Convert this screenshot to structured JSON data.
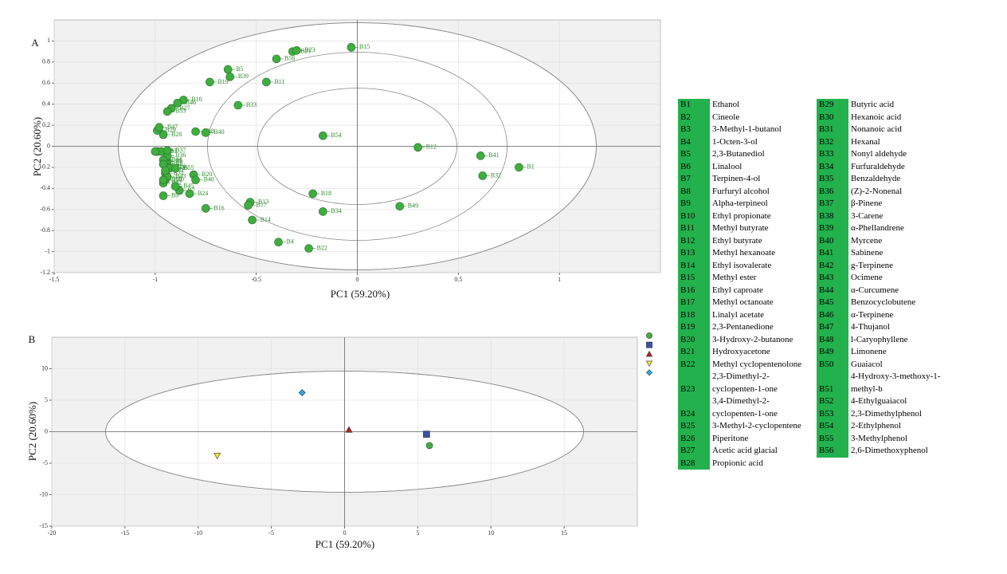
{
  "chart_data": [
    {
      "type": "scatter",
      "panel": "A",
      "xlabel": "PC1 (59.20%)",
      "ylabel": "PC2 (20.60%)",
      "xlim": [
        -1.5,
        1.5
      ],
      "ylim": [
        -1.2,
        1.2
      ],
      "xticks": [
        -1.5,
        -1,
        -0.5,
        0,
        0.5,
        1
      ],
      "yticks": [
        -1.2,
        -1,
        -0.8,
        -0.6,
        -0.4,
        -0.2,
        0,
        0.2,
        0.4,
        0.6,
        0.8,
        1
      ],
      "grid": true,
      "color": "#3fae3f",
      "labels": [
        "B1",
        "B2",
        "B3",
        "B4",
        "B5",
        "B6",
        "B7",
        "B8",
        "B9",
        "B10",
        "B11",
        "B12",
        "B13",
        "B14",
        "B15",
        "B16",
        "B17",
        "B18",
        "B19",
        "B20",
        "B21",
        "B22",
        "B23",
        "B24",
        "B25",
        "B26",
        "B27",
        "B28",
        "B29",
        "B30",
        "B31",
        "B32",
        "B33",
        "B34",
        "B35",
        "B36",
        "B37",
        "B38",
        "B39",
        "B40",
        "B41",
        "B42",
        "B43",
        "B44",
        "B45",
        "B46",
        "B47",
        "B48",
        "B49",
        "B50",
        "B51",
        "B52",
        "B53",
        "B54",
        "B55",
        "B56"
      ],
      "x": [
        0.8,
        -0.99,
        -0.97,
        -0.39,
        -0.64,
        -0.94,
        -0.88,
        -0.94,
        -0.96,
        -0.86,
        -0.45,
        0.3,
        -0.53,
        -0.52,
        -0.03,
        -0.75,
        -0.54,
        -0.22,
        -0.73,
        -0.81,
        -0.32,
        -0.24,
        -0.3,
        -0.83,
        -1.0,
        -0.94,
        -0.92,
        -0.96,
        -0.99,
        -0.95,
        -0.95,
        0.62,
        -0.59,
        -0.17,
        -0.93,
        -0.94,
        -0.94,
        -0.8,
        -0.63,
        -0.75,
        0.61,
        -0.96,
        -0.94,
        -0.96,
        -0.9,
        -0.89,
        -0.98,
        -0.8,
        0.21,
        -0.96,
        -0.96,
        -0.95,
        -0.94,
        -0.17,
        -0.9,
        -0.4
      ],
      "y": [
        -0.2,
        -0.05,
        -0.05,
        -0.91,
        0.73,
        -0.14,
        -0.42,
        -0.17,
        -0.47,
        0.44,
        0.61,
        -0.01,
        -0.53,
        -0.7,
        0.94,
        -0.59,
        -0.56,
        -0.45,
        0.61,
        -0.27,
        0.9,
        -0.97,
        0.91,
        -0.45,
        -0.05,
        -0.2,
        0.36,
        0.11,
        0.15,
        -0.32,
        -0.26,
        -0.28,
        0.39,
        -0.62,
        -0.21,
        -0.09,
        -0.04,
        0.14,
        0.66,
        0.13,
        -0.09,
        -0.35,
        -0.29,
        -0.13,
        -0.38,
        0.41,
        0.18,
        -0.32,
        -0.57,
        -0.32,
        -0.17,
        -0.23,
        0.33,
        0.1,
        -0.21,
        0.83
      ]
    },
    {
      "type": "scatter",
      "panel": "B",
      "xlabel": "PC1 (59.20%)",
      "ylabel": "PC2 (20.60%)",
      "xlim": [
        -20,
        20
      ],
      "ylim": [
        -15,
        15
      ],
      "xticks": [
        -20,
        -15,
        -10,
        -5,
        0,
        5,
        10,
        15
      ],
      "yticks": [
        -15,
        -10,
        -5,
        0,
        5,
        10
      ],
      "grid": true,
      "legend": "upper right",
      "series": [
        {
          "color": "#3fae3f",
          "marker": "circle",
          "x": [
            5.8
          ],
          "y": [
            -2.2
          ]
        },
        {
          "color": "#3b4fa8",
          "marker": "square",
          "x": [
            5.6
          ],
          "y": [
            -0.4
          ]
        },
        {
          "color": "#b22222",
          "marker": "triangle-up",
          "x": [
            0.3
          ],
          "y": [
            0.3
          ]
        },
        {
          "color": "#f2e53a",
          "marker": "triangle-down",
          "x": [
            -8.7
          ],
          "y": [
            -3.8
          ]
        },
        {
          "color": "#2fa8e8",
          "marker": "diamond",
          "x": [
            -2.9
          ],
          "y": [
            6.2
          ]
        }
      ]
    }
  ],
  "table": {
    "left": [
      [
        "B1",
        "Ethanol"
      ],
      [
        "B2",
        "Cineole"
      ],
      [
        "B3",
        "3-Methyl-1-butanol"
      ],
      [
        "B4",
        "1-Octen-3-ol"
      ],
      [
        "B5",
        "2,3-Butanediol"
      ],
      [
        "B6",
        "Linalool"
      ],
      [
        "B7",
        "Terpinen-4-ol"
      ],
      [
        "B8",
        "Furfuryl alcohol"
      ],
      [
        "B9",
        "Alpha-terpineol"
      ],
      [
        "B10",
        "Ethyl propionate"
      ],
      [
        "B11",
        "Methyl butyrate"
      ],
      [
        "B12",
        "Ethyl butyrate"
      ],
      [
        "B13",
        "Methyl hexanoate"
      ],
      [
        "B14",
        "Ethyl isovalerate"
      ],
      [
        "B15",
        "Methyl ester"
      ],
      [
        "B16",
        "Ethyl caproate"
      ],
      [
        "B17",
        "Methyl octanoate"
      ],
      [
        "B18",
        "Linalyl acetate"
      ],
      [
        "B19",
        "2,3-Pentanedione"
      ],
      [
        "B20",
        "3-Hydroxy-2-butanone"
      ],
      [
        "B21",
        "Hydroxyacetone"
      ],
      [
        "B22",
        "Methyl cyclopentenolone"
      ],
      [
        "B23",
        "2,3-Dimethyl-2-cyclopenten-1-one"
      ],
      [
        "B24",
        "3,4-Dimethyl-2-cyclopenten-1-one"
      ],
      [
        "B25",
        "3-Methyl-2-cyclopentene"
      ],
      [
        "B26",
        "Piperitone"
      ],
      [
        "B27",
        "Acetic acid glacial"
      ],
      [
        "B28",
        "Propionic acid"
      ]
    ],
    "right": [
      [
        "B29",
        "Butyric acid"
      ],
      [
        "B30",
        "Hexanoic acid"
      ],
      [
        "B31",
        "Nonanoic acid"
      ],
      [
        "B32",
        "Hexanal"
      ],
      [
        "B33",
        "Nonyl aldehyde"
      ],
      [
        "B34",
        "Furfuraldehyde"
      ],
      [
        "B35",
        "Benzaldehyde"
      ],
      [
        "B36",
        "(Z)-2-Nonenal"
      ],
      [
        "B37",
        "β-Pinene"
      ],
      [
        "B38",
        "3-Carene"
      ],
      [
        "B39",
        "α-Phellandrene"
      ],
      [
        "B40",
        "Myrcene"
      ],
      [
        "B41",
        "Sabinene"
      ],
      [
        "B42",
        "g-Terpinene"
      ],
      [
        "B43",
        "Ocimene"
      ],
      [
        "B44",
        "α-Curcumene"
      ],
      [
        "B45",
        "Benzocyclobutene"
      ],
      [
        "B46",
        "α-Terpinene"
      ],
      [
        "B47",
        "4-Thujanol"
      ],
      [
        "B48",
        "l-Caryophyllene"
      ],
      [
        "B49",
        "Limonene"
      ],
      [
        "B50",
        "Guaiacol"
      ],
      [
        "B51",
        "4-Hydroxy-3-methoxy-1-methyl-b"
      ],
      [
        "B52",
        "4-Ethylguaiacol"
      ],
      [
        "B53",
        "2,3-Dimethylphenol"
      ],
      [
        "B54",
        "2-Ethylphenol"
      ],
      [
        "B55",
        "3-Methylphenol"
      ],
      [
        "B56",
        "2,6-Dimethoxyphenol"
      ]
    ]
  }
}
